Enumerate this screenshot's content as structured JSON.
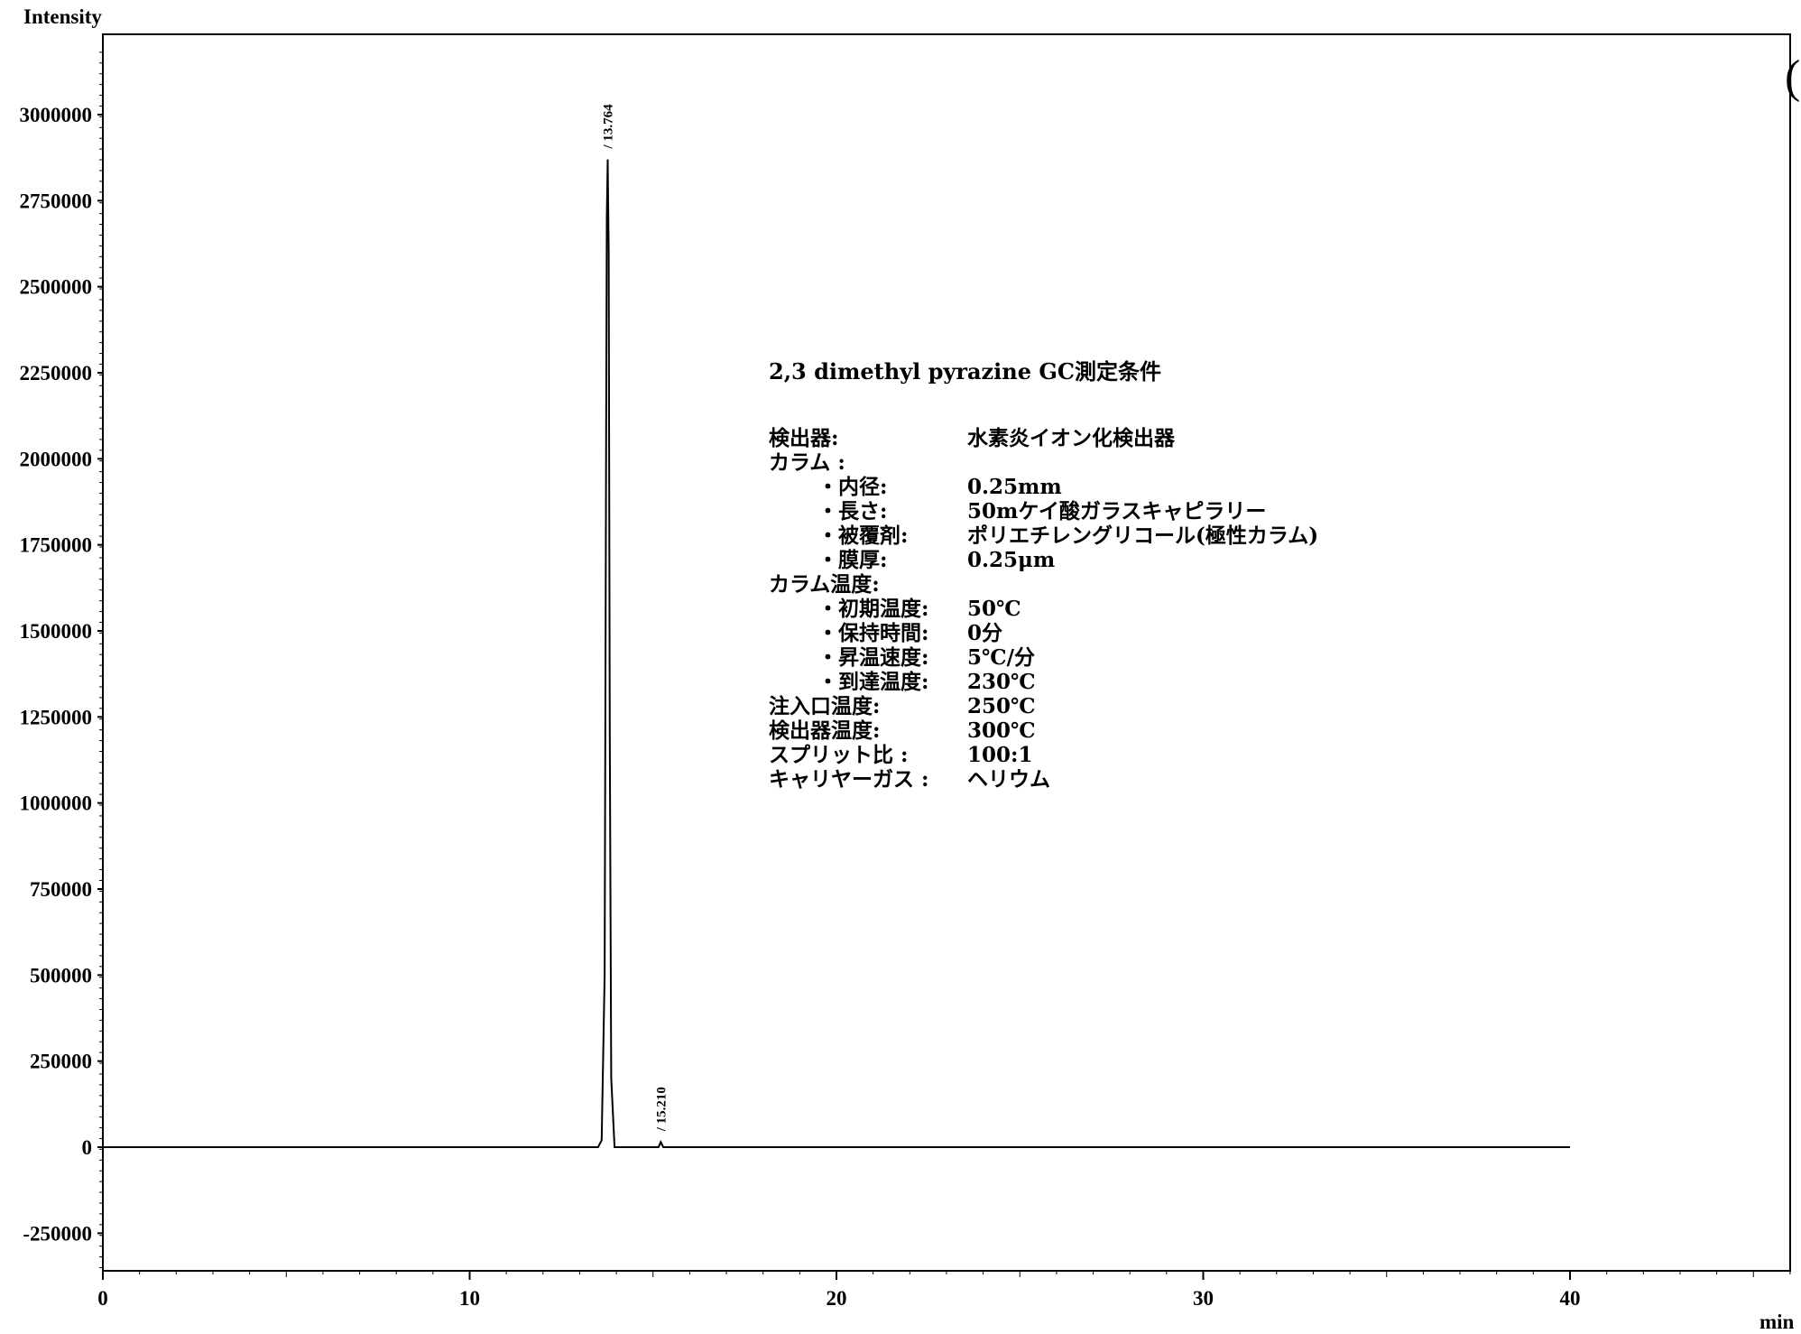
{
  "chart_data": {
    "type": "line",
    "xlabel": "min",
    "ylabel": "Intensity",
    "xlim": [
      0,
      46
    ],
    "ylim": [
      -350000,
      3200000
    ],
    "x_ticks": [
      "0",
      "10",
      "20",
      "30",
      "40"
    ],
    "y_ticks": [
      "3000000",
      "2750000",
      "2500000",
      "2250000",
      "2000000",
      "1750000",
      "1500000",
      "1250000",
      "1000000",
      "750000",
      "500000",
      "250000",
      "0",
      "-250000"
    ],
    "grid": false,
    "series": [
      {
        "x": [
          0,
          13.5,
          13.6,
          13.68,
          13.72,
          13.74,
          13.764,
          13.79,
          13.82,
          13.86,
          13.95,
          15.15,
          15.21,
          15.28,
          40
        ],
        "y": [
          0,
          0,
          20000,
          500000,
          2000000,
          2700000,
          2870000,
          2600000,
          1200000,
          200000,
          0,
          0,
          15000,
          0,
          0
        ]
      }
    ],
    "peaks": [
      {
        "label": "/ 13.764",
        "x": 13.764,
        "y": 2870000
      },
      {
        "label": "/ 15.210",
        "x": 15.21,
        "y": 15000
      }
    ]
  },
  "conditions": {
    "title": "2,3 dimethyl pyrazine  GC測定条件",
    "rows": [
      {
        "label": "検出器:",
        "value": "水素炎イオン化検出器",
        "indent": 0
      },
      {
        "label": "カラム :",
        "value": "",
        "indent": 0
      },
      {
        "label": "・内径:",
        "value": "0.25mm",
        "indent": 1
      },
      {
        "label": "・長さ:",
        "value": "50mケイ酸ガラスキャピラリー",
        "indent": 1
      },
      {
        "label": "・被覆剤:",
        "value": "ポリエチレングリコール(極性カラム)",
        "indent": 1
      },
      {
        "label": "・膜厚:",
        "value": "0.25μm",
        "indent": 1
      },
      {
        "label": "カラム温度:",
        "value": "",
        "indent": 0
      },
      {
        "label": "・初期温度:",
        "value": "50℃",
        "indent": 1
      },
      {
        "label": "・保持時間:",
        "value": "0分",
        "indent": 1
      },
      {
        "label": "・昇温速度:",
        "value": "5℃/分",
        "indent": 1
      },
      {
        "label": "・到達温度:",
        "value": "230℃",
        "indent": 1
      },
      {
        "label": "注入口温度:",
        "value": "250℃",
        "indent": 0
      },
      {
        "label": "検出器温度:",
        "value": "300℃",
        "indent": 0
      },
      {
        "label": "スプリット比  :",
        "value": "100:1",
        "indent": 0
      },
      {
        "label": "キャリヤーガス  :",
        "value": "ヘリウム",
        "indent": 0
      }
    ]
  },
  "edge_mark": "("
}
